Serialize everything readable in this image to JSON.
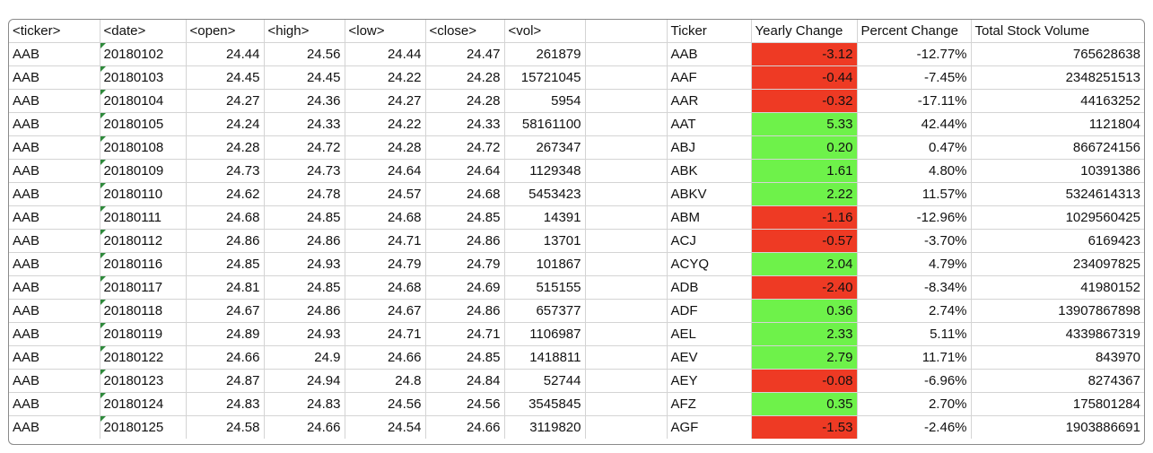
{
  "raw_table": {
    "headers": [
      "<ticker>",
      "<date>",
      "<open>",
      "<high>",
      "<low>",
      "<close>",
      "<vol>"
    ],
    "rows": [
      [
        "AAB",
        "20180102",
        "24.44",
        "24.56",
        "24.44",
        "24.47",
        "261879"
      ],
      [
        "AAB",
        "20180103",
        "24.45",
        "24.45",
        "24.22",
        "24.28",
        "15721045"
      ],
      [
        "AAB",
        "20180104",
        "24.27",
        "24.36",
        "24.27",
        "24.28",
        "5954"
      ],
      [
        "AAB",
        "20180105",
        "24.24",
        "24.33",
        "24.22",
        "24.33",
        "58161100"
      ],
      [
        "AAB",
        "20180108",
        "24.28",
        "24.72",
        "24.28",
        "24.72",
        "267347"
      ],
      [
        "AAB",
        "20180109",
        "24.73",
        "24.73",
        "24.64",
        "24.64",
        "1129348"
      ],
      [
        "AAB",
        "20180110",
        "24.62",
        "24.78",
        "24.57",
        "24.68",
        "5453423"
      ],
      [
        "AAB",
        "20180111",
        "24.68",
        "24.85",
        "24.68",
        "24.85",
        "14391"
      ],
      [
        "AAB",
        "20180112",
        "24.86",
        "24.86",
        "24.71",
        "24.86",
        "13701"
      ],
      [
        "AAB",
        "20180116",
        "24.85",
        "24.93",
        "24.79",
        "24.79",
        "101867"
      ],
      [
        "AAB",
        "20180117",
        "24.81",
        "24.85",
        "24.68",
        "24.69",
        "515155"
      ],
      [
        "AAB",
        "20180118",
        "24.67",
        "24.86",
        "24.67",
        "24.86",
        "657377"
      ],
      [
        "AAB",
        "20180119",
        "24.89",
        "24.93",
        "24.71",
        "24.71",
        "1106987"
      ],
      [
        "AAB",
        "20180122",
        "24.66",
        "24.9",
        "24.66",
        "24.85",
        "1418811"
      ],
      [
        "AAB",
        "20180123",
        "24.87",
        "24.94",
        "24.8",
        "24.84",
        "52744"
      ],
      [
        "AAB",
        "20180124",
        "24.83",
        "24.83",
        "24.56",
        "24.56",
        "3545845"
      ],
      [
        "AAB",
        "20180125",
        "24.58",
        "24.66",
        "24.54",
        "24.66",
        "3119820"
      ]
    ]
  },
  "summary_table": {
    "headers": [
      "Ticker",
      "Yearly Change",
      "Percent Change",
      "Total Stock Volume"
    ],
    "rows": [
      [
        "AAB",
        "-3.12",
        "-12.77%",
        "765628638"
      ],
      [
        "AAF",
        "-0.44",
        "-7.45%",
        "2348251513"
      ],
      [
        "AAR",
        "-0.32",
        "-17.11%",
        "44163252"
      ],
      [
        "AAT",
        "5.33",
        "42.44%",
        "1121804"
      ],
      [
        "ABJ",
        "0.20",
        "0.47%",
        "866724156"
      ],
      [
        "ABK",
        "1.61",
        "4.80%",
        "10391386"
      ],
      [
        "ABKV",
        "2.22",
        "11.57%",
        "5324614313"
      ],
      [
        "ABM",
        "-1.16",
        "-12.96%",
        "1029560425"
      ],
      [
        "ACJ",
        "-0.57",
        "-3.70%",
        "6169423"
      ],
      [
        "ACYQ",
        "2.04",
        "4.79%",
        "234097825"
      ],
      [
        "ADB",
        "-2.40",
        "-8.34%",
        "41980152"
      ],
      [
        "ADF",
        "0.36",
        "2.74%",
        "13907867898"
      ],
      [
        "AEL",
        "2.33",
        "5.11%",
        "4339867319"
      ],
      [
        "AEV",
        "2.79",
        "11.71%",
        "843970"
      ],
      [
        "AEY",
        "-0.08",
        "-6.96%",
        "8274367"
      ],
      [
        "AFZ",
        "0.35",
        "2.70%",
        "175801284"
      ],
      [
        "AGF",
        "-1.53",
        "-2.46%",
        "1903886691"
      ]
    ]
  },
  "colors": {
    "positive_fill": "#6ef24a",
    "negative_fill": "#ee3a24",
    "date_flag": "#2f8a3c"
  }
}
